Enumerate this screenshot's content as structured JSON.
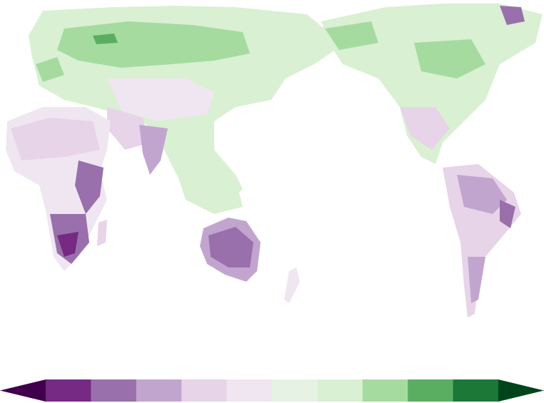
{
  "palette": {
    "neg5": "#40004b",
    "neg4": "#762a83",
    "neg3": "#9970ab",
    "neg2": "#c2a5cf",
    "neg1": "#e7d4e8",
    "neg0": "#f0e6f2",
    "pos0": "#e6f3e4",
    "pos1": "#d9f0d3",
    "pos2": "#a6dba0",
    "pos3": "#5aae61",
    "pos4": "#1b7837",
    "pos5": "#00441b"
  },
  "colorbar": {
    "bins": [
      "neg4",
      "neg3",
      "neg2",
      "neg1",
      "neg0",
      "pos0",
      "pos1",
      "pos2",
      "pos3",
      "pos4"
    ],
    "extend_low": "neg5",
    "extend_high": "pos5"
  }
}
